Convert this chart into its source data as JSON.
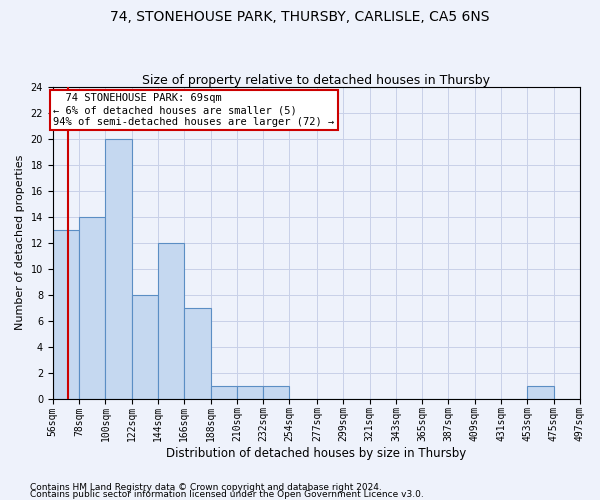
{
  "title1": "74, STONEHOUSE PARK, THURSBY, CARLISLE, CA5 6NS",
  "title2": "Size of property relative to detached houses in Thursby",
  "xlabel": "Distribution of detached houses by size in Thursby",
  "ylabel": "Number of detached properties",
  "footer1": "Contains HM Land Registry data © Crown copyright and database right 2024.",
  "footer2": "Contains public sector information licensed under the Open Government Licence v3.0.",
  "bin_edges": [
    56,
    78,
    100,
    122,
    144,
    166,
    188,
    210,
    232,
    254,
    277,
    299,
    321,
    343,
    365,
    387,
    409,
    431,
    453,
    475,
    497
  ],
  "bar_heights": [
    13,
    14,
    20,
    8,
    12,
    7,
    1,
    1,
    1,
    0,
    0,
    0,
    0,
    0,
    0,
    0,
    0,
    0,
    1,
    0
  ],
  "bar_color": "#c5d8f0",
  "bar_edgecolor": "#5b8ec4",
  "property_size": 69,
  "annotation_title": "74 STONEHOUSE PARK: 69sqm",
  "annotation_line1": "← 6% of detached houses are smaller (5)",
  "annotation_line2": "94% of semi-detached houses are larger (72) →",
  "annotation_box_color": "#ffffff",
  "annotation_box_edgecolor": "#cc0000",
  "red_line_color": "#cc0000",
  "ylim": [
    0,
    24
  ],
  "yticks": [
    0,
    2,
    4,
    6,
    8,
    10,
    12,
    14,
    16,
    18,
    20,
    22,
    24
  ],
  "background_color": "#eef2fb",
  "axes_background": "#eef2fb",
  "grid_color": "#c8d0e8",
  "title1_fontsize": 10,
  "title2_fontsize": 9,
  "xlabel_fontsize": 8.5,
  "ylabel_fontsize": 8,
  "tick_fontsize": 7,
  "annotation_fontsize": 7.5,
  "footer_fontsize": 6.5
}
